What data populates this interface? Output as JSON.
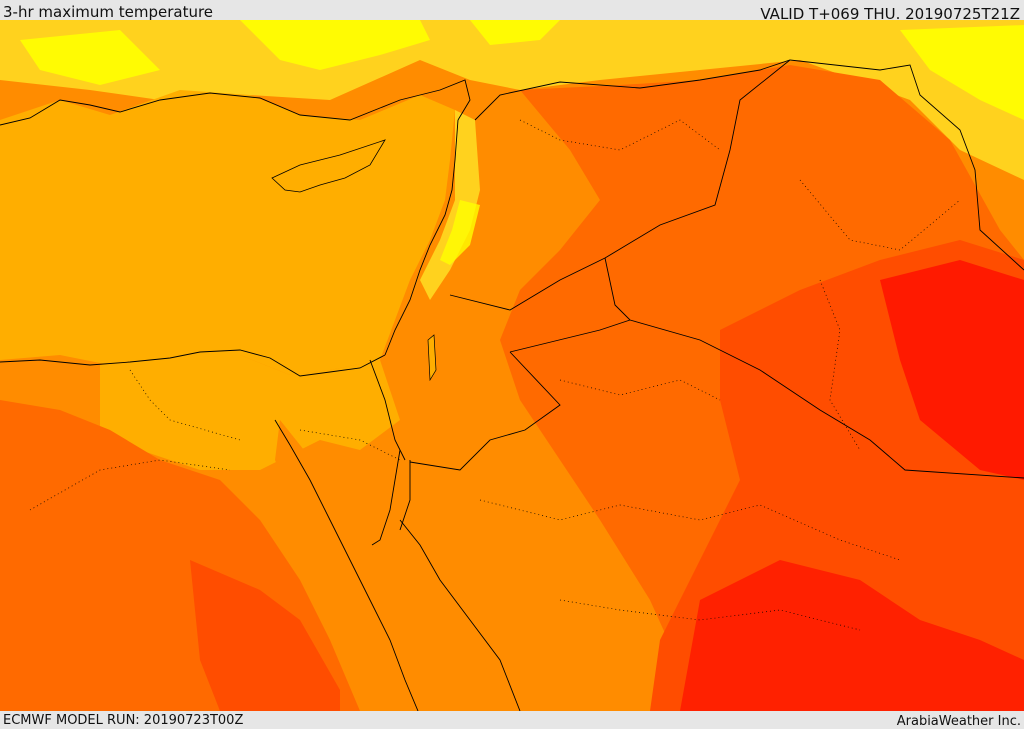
{
  "map": {
    "title": "3-hr maximum temperature",
    "valid_time": "VALID T+069 THU. 20190725T21Z",
    "model_run": "ECMWF MODEL RUN: 20190723T00Z",
    "credit": "ArabiaWeather Inc.",
    "palette": {
      "sea_orange": "#ffae00",
      "cool_yellow": "#ffff00",
      "light_yellow": "#ffd21e",
      "orange": "#ff8c00",
      "dark_orange": "#ff6a00",
      "red_orange": "#ff4d00",
      "red": "#ff1a00",
      "border_line": "#000000"
    }
  }
}
